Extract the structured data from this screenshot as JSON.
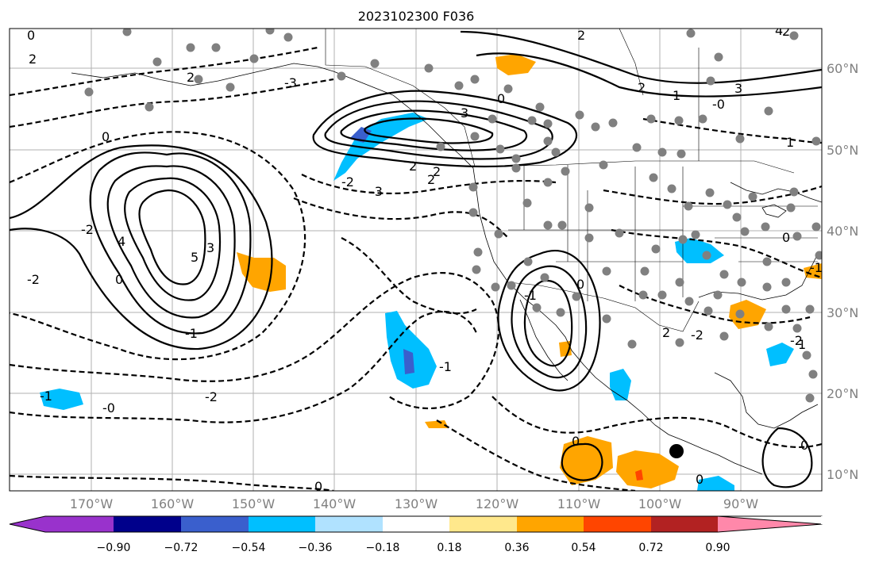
{
  "title": "2023102300 F036",
  "map": {
    "lon_labels": [
      "170°W",
      "160°W",
      "150°W",
      "140°W",
      "130°W",
      "120°W",
      "110°W",
      "100°W",
      "90°W"
    ],
    "lat_labels": [
      "60°N",
      "50°N",
      "40°N",
      "30°N",
      "20°N",
      "10°N"
    ],
    "contour_labels": [
      "0",
      "2",
      "2",
      "0",
      "2",
      "1",
      "-0",
      "3",
      "2",
      "3",
      "0",
      "2",
      "2",
      "1",
      "0",
      "2",
      "1",
      "-3",
      "-2",
      "2",
      "-3",
      "-2",
      "4",
      "5",
      "3",
      "-1",
      "-2",
      "0",
      "-1",
      "-1",
      "0",
      "-1",
      "-0",
      "2",
      "-2",
      "-2",
      "0",
      "0",
      "-2",
      "0",
      "4",
      "0",
      "-1"
    ]
  },
  "colorbar": {
    "tick_labels": [
      "−0.90",
      "−0.72",
      "−0.54",
      "−0.36",
      "−0.18",
      "0.18",
      "0.36",
      "0.54",
      "0.72",
      "0.90"
    ],
    "colors": [
      "#9932cc",
      "#00008b",
      "#3a5fcd",
      "#00bfff",
      "#b0e2ff",
      "#ffffff",
      "#ffe88c",
      "#ffa500",
      "#ff4500",
      "#b22222",
      "#ff88aa"
    ]
  },
  "station_marker": {
    "color": "#000000"
  }
}
